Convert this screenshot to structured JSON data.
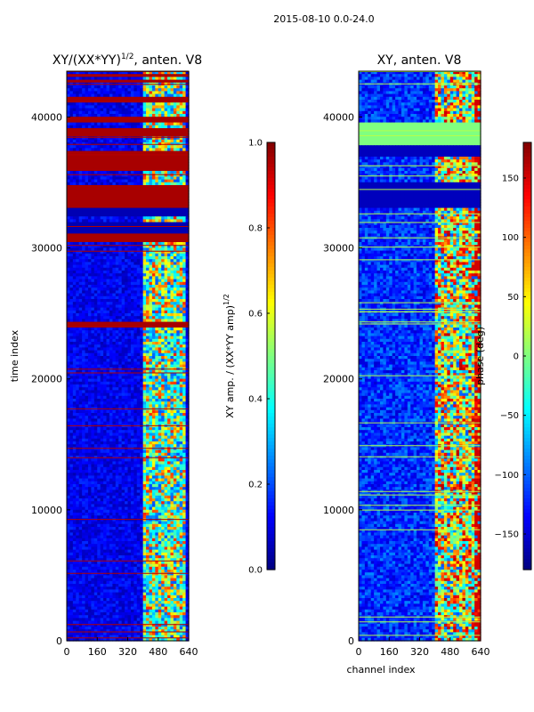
{
  "suptitle": "2015-08-10 0.0-24.0",
  "chart_data": [
    {
      "type": "heatmap",
      "title_text": "XY/(XX*YY)",
      "title_sup": "1/2",
      "title_suffix": ", anten. V8",
      "xlabel": "",
      "ylabel": "time index",
      "xlim": [
        0,
        640
      ],
      "ylim": [
        0,
        43500
      ],
      "xticks": [
        0,
        160,
        320,
        480,
        640
      ],
      "xtick_labels": [
        "0",
        "160",
        "320",
        "480",
        "640"
      ],
      "yticks": [
        0,
        10000,
        20000,
        30000,
        40000
      ],
      "ytick_labels": [
        "0",
        "10000",
        "20000",
        "30000",
        "40000"
      ],
      "colormap": "jet",
      "colorbar": {
        "label_text": "XY amp. / (XX*YY amp)",
        "label_sup": "1/2",
        "range": [
          0.0,
          1.0
        ],
        "ticks": [
          0.0,
          0.2,
          0.4,
          0.6,
          0.8,
          1.0
        ],
        "tick_labels": [
          "0.0",
          "0.2",
          "0.4",
          "0.6",
          "0.8",
          "1.0"
        ]
      },
      "saturated_rows": [
        [
          24000,
          24300
        ],
        [
          30400,
          31000
        ],
        [
          33000,
          34900
        ],
        [
          35800,
          37500
        ],
        [
          38500,
          39200
        ],
        [
          39500,
          40000
        ],
        [
          41200,
          41500
        ],
        [
          42100,
          42300
        ],
        [
          42700,
          42900
        ],
        [
          43100,
          43300
        ]
      ],
      "masked_rows": [
        [
          31000,
          32000
        ],
        [
          32500,
          33000
        ]
      ],
      "active_channel_range": [
        400,
        620
      ]
    },
    {
      "type": "heatmap",
      "title_text": "XY, anten. V8",
      "xlabel": "channel index",
      "ylabel": "",
      "xlim": [
        0,
        640
      ],
      "ylim": [
        0,
        43500
      ],
      "xticks": [
        0,
        160,
        320,
        480,
        640
      ],
      "xtick_labels": [
        "0",
        "160",
        "320",
        "480",
        "640"
      ],
      "yticks": [
        0,
        10000,
        20000,
        30000,
        40000
      ],
      "ytick_labels": [
        "0",
        "10000",
        "20000",
        "30000",
        "40000"
      ],
      "colormap": "jet",
      "colorbar": {
        "label_text": "phase (deg)",
        "range": [
          -180,
          180
        ],
        "ticks": [
          -150,
          -100,
          -50,
          0,
          50,
          100,
          150
        ],
        "tick_labels": [
          "−150",
          "−100",
          "−50",
          "0",
          "50",
          "100",
          "150"
        ]
      },
      "blank_rows": [
        [
          33000,
          35000
        ],
        [
          37000,
          37900
        ]
      ],
      "green_rows": [
        [
          37900,
          39600
        ]
      ],
      "active_channel_range": [
        400,
        640
      ]
    }
  ]
}
